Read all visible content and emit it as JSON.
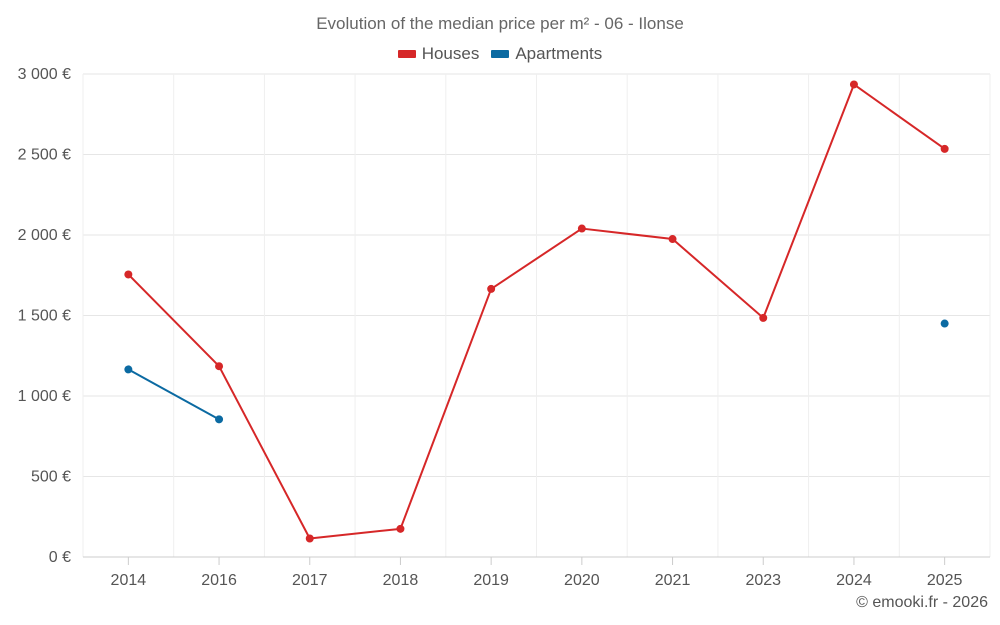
{
  "chart_data": {
    "type": "line",
    "title": "Evolution of the median price per m² - 06 - Ilonse",
    "categories": [
      "2014",
      "2016",
      "2017",
      "2018",
      "2019",
      "2020",
      "2021",
      "2023",
      "2024",
      "2025"
    ],
    "series": [
      {
        "name": "Houses",
        "color": "#d62728",
        "values": [
          1755,
          1185,
          115,
          175,
          1665,
          2040,
          1975,
          1485,
          2935,
          2535
        ]
      },
      {
        "name": "Apartments",
        "color": "#0b6aa2",
        "values": [
          1165,
          855,
          null,
          null,
          null,
          null,
          null,
          null,
          null,
          1450
        ]
      }
    ],
    "ylim": [
      0,
      3000
    ],
    "yticks": [
      0,
      500,
      1000,
      1500,
      2000,
      2500,
      3000
    ],
    "ytick_labels": [
      "0 €",
      "500 €",
      "1 000 €",
      "1 500 €",
      "2 000 €",
      "2 500 €",
      "3 000 €"
    ],
    "xlabel": "",
    "ylabel": "",
    "grid": true,
    "legend_position": "top-center"
  },
  "credit": "© emooki.fr - 2026"
}
